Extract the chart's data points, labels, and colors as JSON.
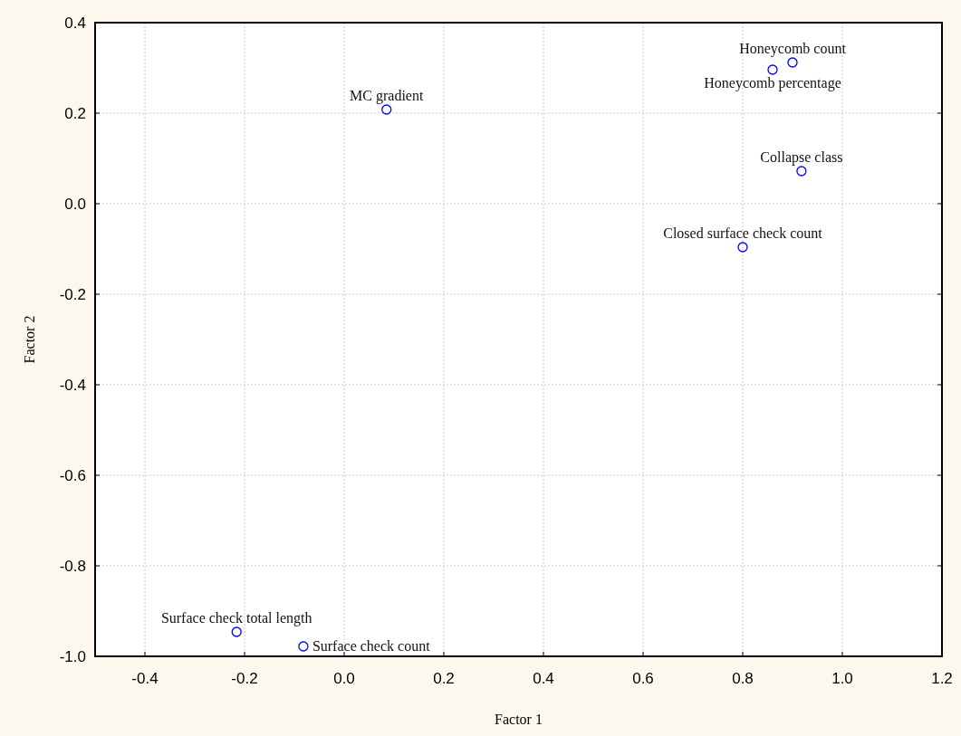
{
  "chart_data": {
    "type": "scatter",
    "xlabel": "Factor 1",
    "ylabel": "Factor 2",
    "xlim": [
      -0.5,
      1.2
    ],
    "ylim": [
      -1.0,
      0.4
    ],
    "xticks": [
      -0.4,
      -0.2,
      {
        "value": 0,
        "label": "0.0"
      },
      0.2,
      0.4,
      0.6,
      0.8,
      {
        "value": 1,
        "label": "1.0"
      },
      1.2
    ],
    "yticks": [
      {
        "value": -1,
        "label": "-1.0"
      },
      -0.8,
      -0.6,
      -0.4,
      -0.2,
      {
        "value": 0,
        "label": "0.0"
      },
      0.2,
      0.4
    ],
    "grid": true,
    "marker": "circle",
    "series": [
      {
        "color": "#0000ff",
        "x": [
          0.085,
          0.9,
          0.86,
          0.918,
          0.8,
          -0.216,
          -0.082
        ],
        "values": [
          0.208,
          0.312,
          0.296,
          0.072,
          -0.096,
          -0.946,
          -0.978
        ]
      }
    ],
    "annotations": [
      {
        "text": "MC gradient",
        "x": 0.085,
        "y": 0.208
      },
      {
        "text": "Honeycomb count",
        "x": 0.9,
        "y": 0.312
      },
      {
        "text": "Honeycomb percentage",
        "x": 0.86,
        "y": 0.296
      },
      {
        "text": "Collapse class",
        "x": 0.918,
        "y": 0.072
      },
      {
        "text": "Closed surface check count",
        "x": 0.8,
        "y": -0.096
      },
      {
        "text": "Surface check total length",
        "x": -0.216,
        "y": -0.946
      },
      {
        "text": "Surface check count",
        "x": -0.082,
        "y": -0.978
      }
    ]
  }
}
